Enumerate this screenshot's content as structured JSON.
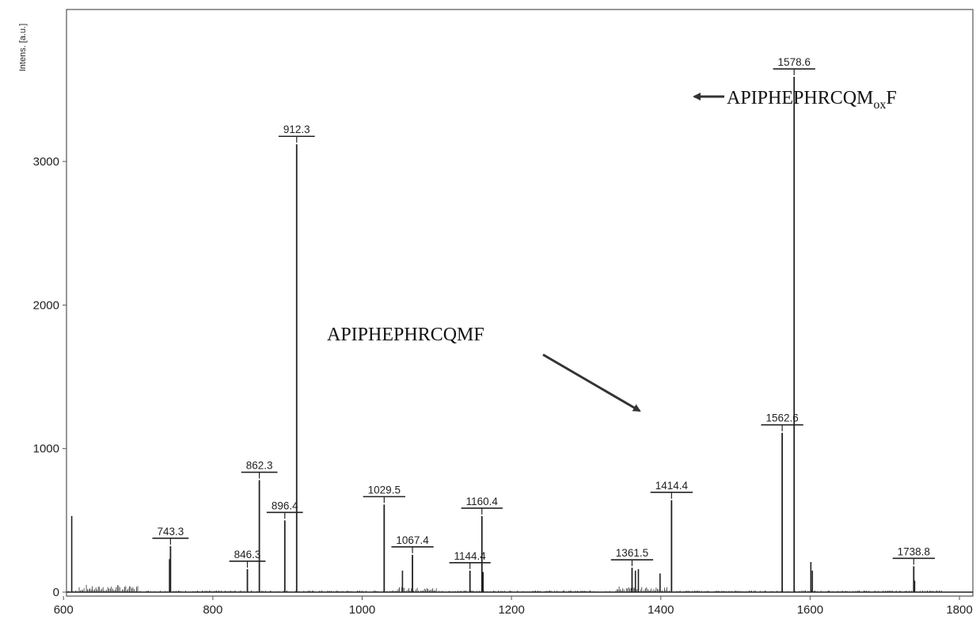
{
  "chart_data": {
    "type": "bar",
    "ylabel": "Intens. [a.u.]",
    "xlabel": "",
    "xlim": [
      604,
      1818
    ],
    "ylim": [
      0,
      3960
    ],
    "x_ticks": [
      600,
      800,
      1000,
      1200,
      1400,
      1600,
      1800
    ],
    "y_ticks": [
      0,
      1000,
      2000,
      3000
    ],
    "grid": false,
    "labeled_peaks": [
      {
        "mz": "743.3",
        "x": 743.3,
        "y": 320
      },
      {
        "mz": "846.3",
        "x": 846.3,
        "y": 160
      },
      {
        "mz": "862.3",
        "x": 862.3,
        "y": 780
      },
      {
        "mz": "896.4",
        "x": 896.4,
        "y": 500
      },
      {
        "mz": "912.3",
        "x": 912.3,
        "y": 3120
      },
      {
        "mz": "1029.5",
        "x": 1029.5,
        "y": 610
      },
      {
        "mz": "1067.4",
        "x": 1067.4,
        "y": 260
      },
      {
        "mz": "1144.4",
        "x": 1144.4,
        "y": 150
      },
      {
        "mz": "1160.4",
        "x": 1160.4,
        "y": 530
      },
      {
        "mz": "1361.5",
        "x": 1361.5,
        "y": 170
      },
      {
        "mz": "1414.4",
        "x": 1414.4,
        "y": 640
      },
      {
        "mz": "1562.6",
        "x": 1562.6,
        "y": 1110
      },
      {
        "mz": "1578.6",
        "x": 1578.6,
        "y": 3590
      },
      {
        "mz": "1738.8",
        "x": 1738.8,
        "y": 180
      }
    ],
    "unlabeled_peaks": [
      {
        "x": 611,
        "y": 530
      },
      {
        "x": 742,
        "y": 230
      },
      {
        "x": 1054,
        "y": 150
      },
      {
        "x": 1162,
        "y": 140
      },
      {
        "x": 1366,
        "y": 150
      },
      {
        "x": 1370,
        "y": 160
      },
      {
        "x": 1399,
        "y": 130
      },
      {
        "x": 1601,
        "y": 210
      },
      {
        "x": 1603,
        "y": 150
      },
      {
        "x": 1740,
        "y": 80
      }
    ],
    "annotations": [
      {
        "text": "APIPHEPHRCQMF",
        "points_to": "1562.6"
      },
      {
        "text": "APIPHEPHRCQM",
        "subscript": "ox",
        "suffix": "F",
        "points_to": "1578.6"
      }
    ]
  }
}
